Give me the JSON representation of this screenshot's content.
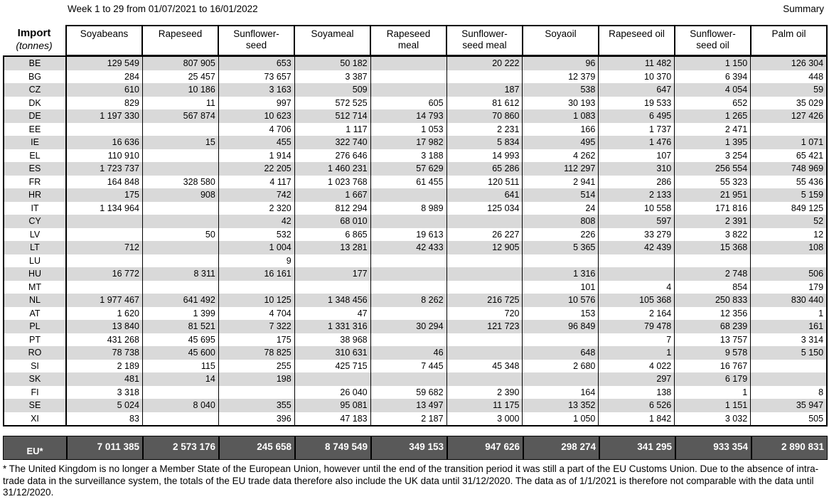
{
  "header": {
    "title": "Week 1 to 29 from 01/07/2021 to 16/01/2022",
    "summary_label": "Summary"
  },
  "table": {
    "corner": {
      "line1": "Import",
      "line2": "(tonnes)"
    },
    "columns": [
      "Soyabeans",
      "Rapeseed",
      "Sunflower-\nseed",
      "Soyameal",
      "Rapeseed\nmeal",
      "Sunflower-\nseed meal",
      "Soyaoil",
      "Rapeseed oil",
      "Sunflower-\nseed oil",
      "Palm oil"
    ],
    "rows": [
      {
        "code": "BE",
        "values": [
          "129 549",
          "807 905",
          "653",
          "50 182",
          "",
          "20 222",
          "96",
          "11 482",
          "1 150",
          "126 304"
        ]
      },
      {
        "code": "BG",
        "values": [
          "284",
          "25 457",
          "73 657",
          "3 387",
          "",
          "",
          "12 379",
          "10 370",
          "6 394",
          "448"
        ]
      },
      {
        "code": "CZ",
        "values": [
          "610",
          "10 186",
          "3 163",
          "509",
          "",
          "187",
          "538",
          "647",
          "4 054",
          "59"
        ]
      },
      {
        "code": "DK",
        "values": [
          "829",
          "11",
          "997",
          "572 525",
          "605",
          "81 612",
          "30 193",
          "19 533",
          "652",
          "35 029"
        ]
      },
      {
        "code": "DE",
        "values": [
          "1 197 330",
          "567 874",
          "10 623",
          "512 714",
          "14 793",
          "70 860",
          "1 083",
          "6 495",
          "1 265",
          "127 426"
        ]
      },
      {
        "code": "EE",
        "values": [
          "",
          "",
          "4 706",
          "1 117",
          "1 053",
          "2 231",
          "166",
          "1 737",
          "2 471",
          ""
        ]
      },
      {
        "code": "IE",
        "values": [
          "16 636",
          "15",
          "455",
          "322 740",
          "17 982",
          "5 834",
          "495",
          "1 476",
          "1 395",
          "1 071"
        ]
      },
      {
        "code": "EL",
        "values": [
          "110 910",
          "",
          "1 914",
          "276 646",
          "3 188",
          "14 993",
          "4 262",
          "107",
          "3 254",
          "65 421"
        ]
      },
      {
        "code": "ES",
        "values": [
          "1 723 737",
          "",
          "22 205",
          "1 460 231",
          "57 629",
          "65 286",
          "112 297",
          "310",
          "256 554",
          "748 969"
        ]
      },
      {
        "code": "FR",
        "values": [
          "164 848",
          "328 580",
          "4 117",
          "1 023 768",
          "61 455",
          "120 511",
          "2 941",
          "286",
          "55 323",
          "55 436"
        ]
      },
      {
        "code": "HR",
        "values": [
          "175",
          "908",
          "742",
          "1 667",
          "",
          "641",
          "514",
          "2 133",
          "21 951",
          "5 159"
        ]
      },
      {
        "code": "IT",
        "values": [
          "1 134 964",
          "",
          "2 320",
          "812 294",
          "8 989",
          "125 034",
          "24",
          "10 558",
          "171 816",
          "849 125"
        ]
      },
      {
        "code": "CY",
        "values": [
          "",
          "",
          "42",
          "68 010",
          "",
          "",
          "808",
          "597",
          "2 391",
          "52"
        ]
      },
      {
        "code": "LV",
        "values": [
          "",
          "50",
          "532",
          "6 865",
          "19 613",
          "26 227",
          "226",
          "33 279",
          "3 822",
          "12"
        ]
      },
      {
        "code": "LT",
        "values": [
          "712",
          "",
          "1 004",
          "13 281",
          "42 433",
          "12 905",
          "5 365",
          "42 439",
          "15 368",
          "108"
        ]
      },
      {
        "code": "LU",
        "values": [
          "",
          "",
          "9",
          "",
          "",
          "",
          "",
          "",
          "",
          ""
        ]
      },
      {
        "code": "HU",
        "values": [
          "16 772",
          "8 311",
          "16 161",
          "177",
          "",
          "",
          "1 316",
          "",
          "2 748",
          "506"
        ]
      },
      {
        "code": "MT",
        "values": [
          "",
          "",
          "",
          "",
          "",
          "",
          "101",
          "4",
          "854",
          "179"
        ]
      },
      {
        "code": "NL",
        "values": [
          "1 977 467",
          "641 492",
          "10 125",
          "1 348 456",
          "8 262",
          "216 725",
          "10 576",
          "105 368",
          "250 833",
          "830 440"
        ]
      },
      {
        "code": "AT",
        "values": [
          "1 620",
          "1 399",
          "4 704",
          "47",
          "",
          "720",
          "153",
          "2 164",
          "12 356",
          "1"
        ]
      },
      {
        "code": "PL",
        "values": [
          "13 840",
          "81 521",
          "7 322",
          "1 331 316",
          "30 294",
          "121 723",
          "96 849",
          "79 478",
          "68 239",
          "161"
        ]
      },
      {
        "code": "PT",
        "values": [
          "431 268",
          "45 695",
          "175",
          "38 968",
          "",
          "",
          "",
          "7",
          "13 757",
          "3 314"
        ]
      },
      {
        "code": "RO",
        "values": [
          "78 738",
          "45 600",
          "78 825",
          "310 631",
          "46",
          "",
          "648",
          "1",
          "9 578",
          "5 150"
        ]
      },
      {
        "code": "SI",
        "values": [
          "2 189",
          "115",
          "255",
          "425 715",
          "7 445",
          "45 348",
          "2 680",
          "4 022",
          "16 767",
          ""
        ]
      },
      {
        "code": "SK",
        "values": [
          "481",
          "14",
          "198",
          "",
          "",
          "",
          "",
          "297",
          "6 179",
          ""
        ]
      },
      {
        "code": "FI",
        "values": [
          "3 318",
          "",
          "",
          "26 040",
          "59 682",
          "2 390",
          "164",
          "138",
          "1",
          "8"
        ]
      },
      {
        "code": "SE",
        "values": [
          "5 024",
          "8 040",
          "355",
          "95 081",
          "13 497",
          "11 175",
          "13 352",
          "6 526",
          "1 151",
          "35 947"
        ]
      },
      {
        "code": "XI",
        "values": [
          "83",
          "",
          "396",
          "47 183",
          "2 187",
          "3 000",
          "1 050",
          "1 842",
          "3 032",
          "505"
        ]
      }
    ],
    "total": {
      "code": "EU*",
      "values": [
        "7 011 385",
        "2 573 176",
        "245 658",
        "8 749 549",
        "349 153",
        "947 626",
        "298 274",
        "341 295",
        "933 354",
        "2 890 831"
      ]
    }
  },
  "footnote": "* The United Kingdom is no longer a Member State of the European Union, however until the end of the transition period it was still a part of the EU Customs Union. Due to the absence of intra-trade data in the surveillance system, the totals of the EU trade data  therefore also include the UK data until 31/12/2020. The data as of 1/1/2021 is therefore not comparable with the data until 31/12/2020.",
  "colors": {
    "row_stripe": "#d9d9d9",
    "total_row_bg": "#595959",
    "total_row_text": "#ffffff",
    "border": "#000000"
  }
}
